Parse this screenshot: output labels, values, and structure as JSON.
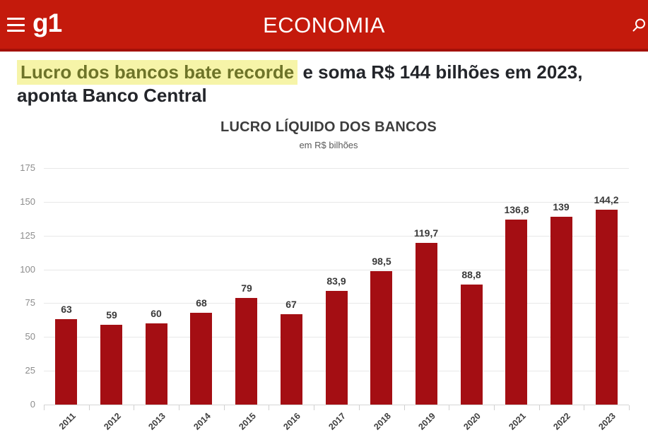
{
  "header": {
    "logo": "g1",
    "section_title": "ECONOMIA",
    "background_color": "#c41a0c",
    "accent_color": "#a31008"
  },
  "headline": {
    "highlighted_text": "Lucro dos bancos bate recorde",
    "rest_text": " e soma R$ 144 bilhões em 2023, aponta Banco Central",
    "highlight_background": "#f6f4a8",
    "highlight_text_color": "#6e7429"
  },
  "chart_data": {
    "type": "bar",
    "title": "LUCRO LÍQUIDO DOS BANCOS",
    "subtitle": "em R$ bilhões",
    "categories": [
      "2011",
      "2012",
      "2013",
      "2014",
      "2015",
      "2016",
      "2017",
      "2018",
      "2019",
      "2020",
      "2021",
      "2022",
      "2023"
    ],
    "values": [
      63,
      59,
      60,
      68,
      79,
      67,
      83.9,
      98.5,
      119.7,
      88.8,
      136.8,
      139,
      144.2
    ],
    "value_labels": [
      "63",
      "59",
      "60",
      "68",
      "79",
      "67",
      "83,9",
      "98,5",
      "119,7",
      "88,8",
      "136,8",
      "139",
      "144,2"
    ],
    "xlabel": "",
    "ylabel": "",
    "ylim": [
      0,
      175
    ],
    "yticks": [
      0,
      25,
      50,
      75,
      100,
      125,
      150,
      175
    ],
    "grid": true,
    "legend_position": "none",
    "bar_color": "#a40e13"
  }
}
